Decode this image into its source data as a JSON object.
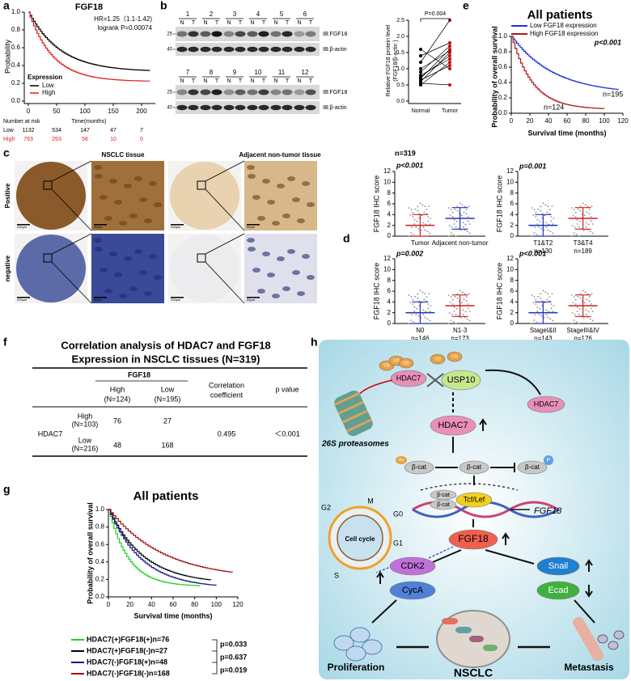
{
  "panels": {
    "a": {
      "label": "a",
      "title": "FGF18",
      "hr": "HR=1.25（1.1-1.42)",
      "logrank": "logrank P=0.00074",
      "ylabel": "Probability",
      "yticks": [
        "0.0",
        "0.2",
        "0.4",
        "0.6",
        "0.8",
        "1.0"
      ],
      "xticks": [
        "0",
        "50",
        "100",
        "150",
        "200"
      ],
      "xlabel": "Time(months)",
      "legend_title": "Expression",
      "legend": [
        {
          "name": "Low",
          "color": "#000000"
        },
        {
          "name": "High",
          "color": "#e02020"
        }
      ],
      "risk_title": "Number at risk",
      "risk": [
        {
          "name": "Low",
          "color": "#000000",
          "values": [
            "1132",
            "534",
            "147",
            "47",
            "7"
          ]
        },
        {
          "name": "High",
          "color": "#e02020",
          "values": [
            "793",
            "293",
            "56",
            "10",
            "0"
          ]
        }
      ]
    },
    "b": {
      "label": "b",
      "lanes_top": [
        "1",
        "2",
        "3",
        "4",
        "5",
        "6"
      ],
      "lanes_bottom": [
        "7",
        "8",
        "9",
        "10",
        "11",
        "12"
      ],
      "nt": [
        "N",
        "T"
      ],
      "markers": [
        "25",
        "40"
      ],
      "ib": [
        "IB:FGF18",
        "IB:β-actin"
      ],
      "ylabel": [
        "Relative FGF18 protein level",
        "(FGF18/β-actin )"
      ],
      "yticks": [
        "0.0",
        "0.5",
        "1.0",
        "1.5",
        "2.0",
        "2.5"
      ],
      "p": "P=0.004",
      "groups": [
        "Normal",
        "Tumor"
      ]
    },
    "c": {
      "label": "c",
      "titles": [
        "NSCLC tissue",
        "Adjacent non-tumor tissue"
      ],
      "rows": [
        "Positive",
        "negative"
      ],
      "scale": [
        "200μm",
        "50μm"
      ]
    },
    "d": {
      "label": "d",
      "n": "n=319",
      "ylabel": "FGF18 IHC score",
      "yticks": [
        0,
        2,
        4,
        6,
        8,
        10,
        12
      ],
      "plots": [
        {
          "p": "p<0.001",
          "groups": [
            {
              "name": "Tumor",
              "color": "#d02020"
            },
            {
              "name": "Adjacent non-tumor",
              "color": "#2030c0"
            }
          ]
        },
        {
          "p": "p=0.001",
          "groups": [
            {
              "name": "T1&T2",
              "n": "n=130",
              "color": "#2030c0"
            },
            {
              "name": "T3&T4",
              "n": "n=189",
              "color": "#d02020"
            }
          ]
        },
        {
          "p": "p=0.002",
          "groups": [
            {
              "name": "N0",
              "n": "n=146",
              "color": "#2030c0"
            },
            {
              "name": "N1-3",
              "n": "n=173",
              "color": "#d02020"
            }
          ]
        },
        {
          "p": "p<0.001",
          "groups": [
            {
              "name": "StageI&II",
              "n": "n=143",
              "color": "#2030c0"
            },
            {
              "name": "StageIII&IV",
              "n": "n=176",
              "color": "#d02020"
            }
          ]
        }
      ]
    },
    "e": {
      "label": "e",
      "title": "All patients",
      "legend": [
        {
          "name": "Low FGF18 expression",
          "color": "#2030e0"
        },
        {
          "name": "High FGF18 expression",
          "color": "#b01818"
        }
      ],
      "p": "p<0.001",
      "n_low": "n=195",
      "n_high": "n=124",
      "ylabel": "Probability of overall survival",
      "yticks": [
        "0.0",
        "0.2",
        "0.4",
        "0.6",
        "0.8",
        "1.0"
      ],
      "xticks": [
        0,
        20,
        40,
        60,
        80,
        100,
        120
      ],
      "xlabel": "Survival time (months)"
    },
    "f": {
      "label": "f",
      "title": [
        "Correlation analysis of HDAC7 and FGF18",
        "Expression in NSCLC tissues (N=319)"
      ],
      "col_group": "FGF18",
      "cols": [
        [
          "High",
          "(N=124)"
        ],
        [
          "Low",
          "(N=195)"
        ]
      ],
      "coef_header": [
        "Correlation",
        "coefficient"
      ],
      "p_header": "p value",
      "row_group": "HDAC7",
      "rows": [
        {
          "label": "High",
          "n": "(N=103)",
          "values": [
            "76",
            "27"
          ]
        },
        {
          "label": "Low",
          "n": "(N=216)",
          "values": [
            "48",
            "168"
          ]
        }
      ],
      "coef": "0.495",
      "p": "＜0.001"
    },
    "g": {
      "label": "g",
      "title": "All patients",
      "ylabel": "Probability of overall survival",
      "yticks": [
        "0.0",
        "0.2",
        "0.4",
        "0.6",
        "0.8",
        "1.0"
      ],
      "xticks": [
        0,
        20,
        40,
        60,
        80,
        100,
        120
      ],
      "xlabel": "Survival time (months)",
      "legend": [
        {
          "name": "HDAC7(+)FGF18(+)n=76",
          "color": "#20d020"
        },
        {
          "name": "HDAC7(+)FGF18(-)n=27",
          "color": "#000000"
        },
        {
          "name": "HDAC7(-)FGF18(+)n=48",
          "color": "#101880"
        },
        {
          "name": "HDAC7(-)FGF18(-)n=168",
          "color": "#a01010"
        }
      ],
      "pvalues": [
        "p=0.033",
        "p=0.637",
        "p=0.019"
      ]
    },
    "h": {
      "label": "h",
      "ub": "Ub",
      "hdac7": "HDAC7",
      "usp10": "USP10",
      "proteasome": "26S proteasomes",
      "ac": "Ac",
      "bcat": "β-cat",
      "p": "P",
      "tcf": "Tcf/Lef",
      "fgf18_gene": "FGF18",
      "fgf18": "FGF18",
      "cell_cycle": "Cell cycle",
      "phases": [
        "G2",
        "M",
        "G0",
        "G1",
        "S"
      ],
      "cdk2": "CDK2",
      "cyca": "CycA",
      "snail": "Snail",
      "ecad": "Ecad",
      "proliferation": "Proliferation",
      "nsclc": "NSCLC",
      "metastasis": "Metastasis"
    }
  }
}
